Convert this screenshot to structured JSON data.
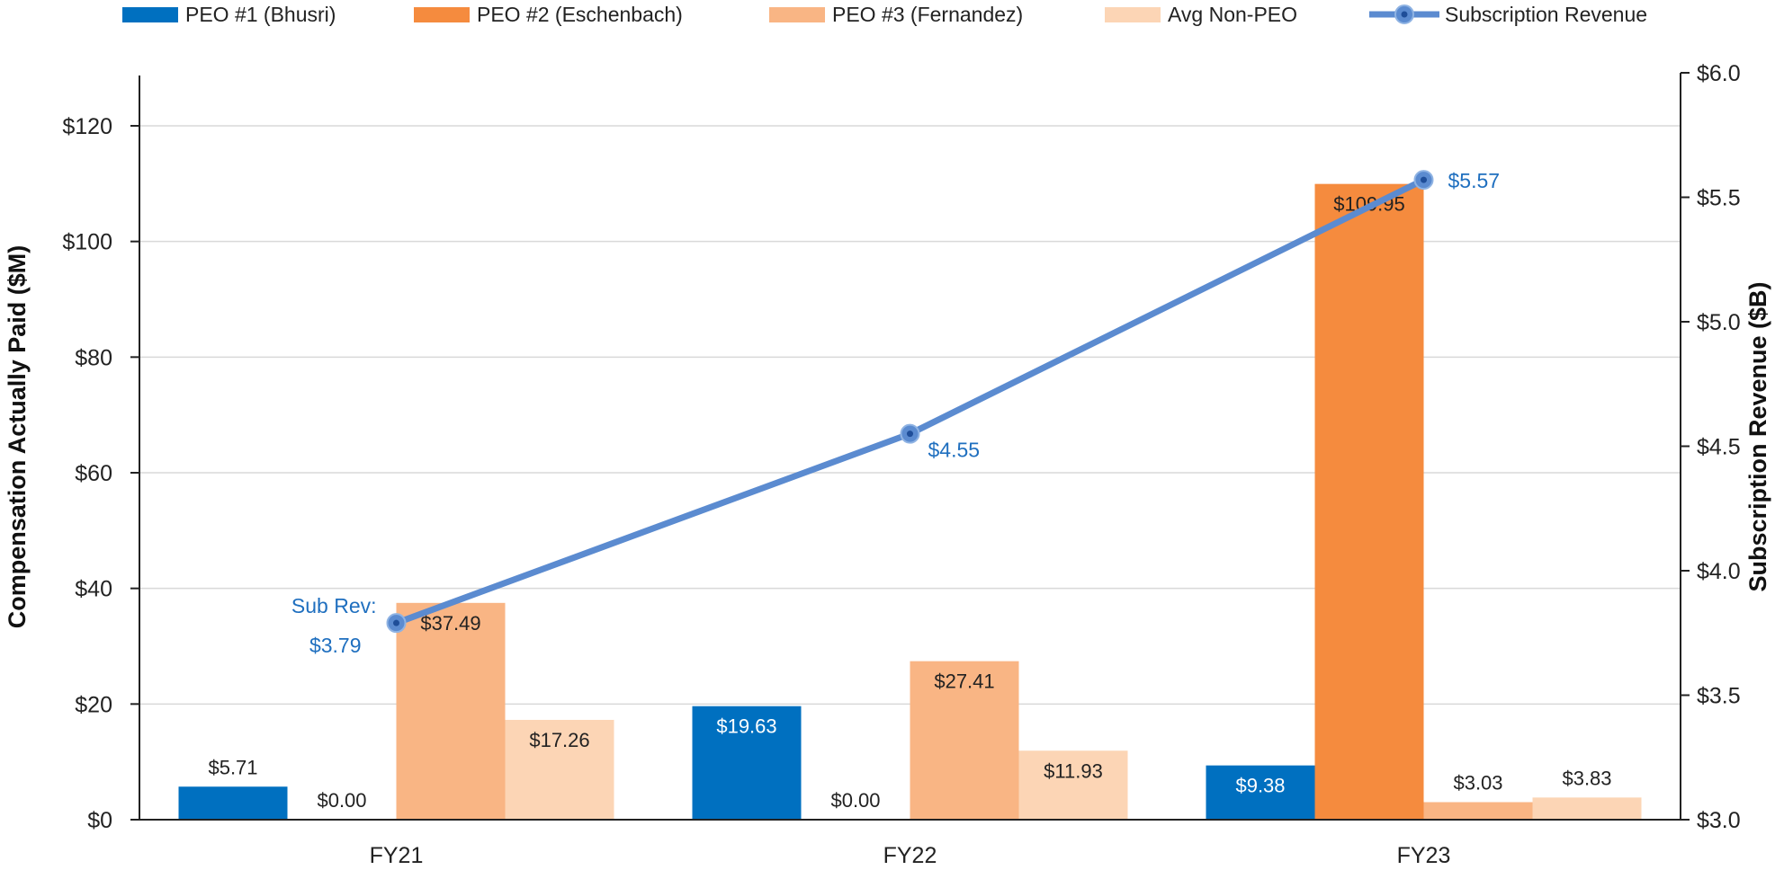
{
  "chart_data": {
    "type": "bar",
    "categories": [
      "FY21",
      "FY22",
      "FY23"
    ],
    "series": [
      {
        "name": "PEO #1 (Bhusri)",
        "values": [
          5.71,
          19.63,
          9.38
        ],
        "labels": [
          "$5.71",
          "$19.63",
          "$9.38"
        ],
        "color": "#0070C0"
      },
      {
        "name": "PEO #2 (Eschenbach)",
        "values": [
          0.0,
          0.0,
          109.95
        ],
        "labels": [
          "$0.00",
          "$0.00",
          "$109.95"
        ],
        "color": "#F58B3E"
      },
      {
        "name": "PEO #3 (Fernandez)",
        "values": [
          37.49,
          27.41,
          3.03
        ],
        "labels": [
          "$37.49",
          "$27.41",
          "$3.03"
        ],
        "color": "#F9B584"
      },
      {
        "name": "Avg Non-PEO",
        "values": [
          17.26,
          11.93,
          3.83
        ],
        "labels": [
          "$17.26",
          "$11.93",
          "$3.83"
        ],
        "color": "#FCD5B5"
      }
    ],
    "line_series": {
      "name": "Subscription Revenue",
      "values": [
        3.79,
        4.55,
        5.57
      ],
      "labels": [
        "$3.79",
        "$4.55",
        "$5.57"
      ],
      "first_label_prefix": "Sub Rev:",
      "color": "#5B8BD0",
      "label_color": "#1F6FBF"
    },
    "ylabel": "Compensation Actually Paid ($M)",
    "y2label": "Subscription Revenue ($B)",
    "ylim": [
      0,
      130
    ],
    "yticks": [
      0,
      20,
      40,
      60,
      80,
      100,
      120
    ],
    "ytick_labels": [
      "$0",
      "$20",
      "$40",
      "$60",
      "$80",
      "$100",
      "$120"
    ],
    "y2lim": [
      3.0,
      6.0
    ],
    "y2ticks": [
      3.0,
      3.5,
      4.0,
      4.5,
      5.0,
      5.5,
      6.0
    ],
    "y2tick_labels": [
      "$3.0",
      "$3.5",
      "$4.0",
      "$4.5",
      "$5.0",
      "$5.5",
      "$6.0"
    ],
    "grid": true,
    "legend_position": "top"
  }
}
